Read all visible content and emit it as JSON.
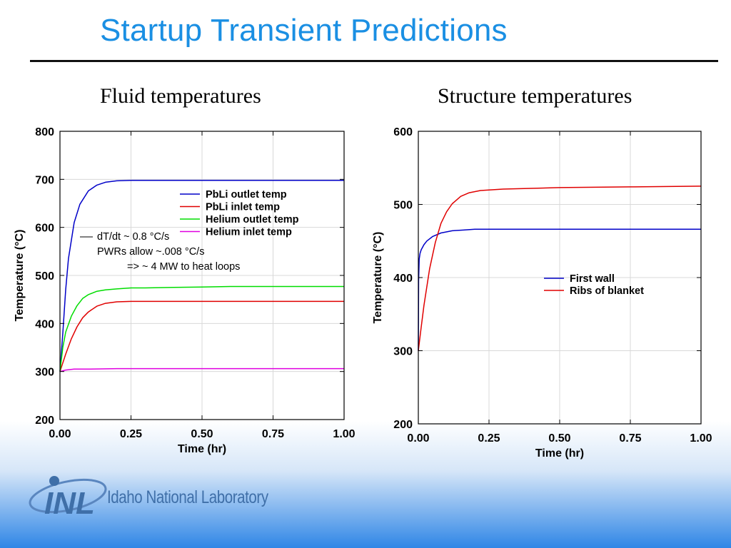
{
  "slide": {
    "title": "Startup Transient Predictions",
    "left_subtitle": "Fluid temperatures",
    "right_subtitle": "Structure temperatures",
    "logo_mark": "INL",
    "logo_text": "Idaho National Laboratory"
  },
  "colors": {
    "title": "#1a8fe3",
    "blue": "#0000c8",
    "red": "#e00000",
    "green": "#00dd00",
    "magenta": "#e000e0"
  },
  "chart_data": [
    {
      "type": "line",
      "title": "Fluid temperatures",
      "xlabel": "Time (hr)",
      "ylabel": "Temperature (°C)",
      "xlim": [
        0,
        1
      ],
      "ylim": [
        200,
        800
      ],
      "xticks": [
        "0.00",
        "0.25",
        "0.50",
        "0.75",
        "1.00"
      ],
      "yticks": [
        "200",
        "300",
        "400",
        "500",
        "600",
        "700",
        "800"
      ],
      "grid": true,
      "legend_position": "top-right",
      "series": [
        {
          "name": "PbLi outlet temp",
          "color": "#0000c8",
          "x": [
            0,
            0.01,
            0.02,
            0.03,
            0.05,
            0.07,
            0.1,
            0.13,
            0.16,
            0.2,
            0.25,
            0.3,
            0.4,
            0.5,
            0.6,
            0.75,
            1.0
          ],
          "y": [
            300,
            380,
            470,
            535,
            610,
            648,
            676,
            688,
            694,
            697,
            698,
            698,
            698,
            698,
            698,
            698,
            698
          ]
        },
        {
          "name": "PbLi inlet temp",
          "color": "#e00000",
          "x": [
            0,
            0.02,
            0.04,
            0.06,
            0.08,
            0.1,
            0.13,
            0.16,
            0.2,
            0.25,
            0.3,
            0.4,
            0.5,
            0.6,
            0.75,
            1.0
          ],
          "y": [
            300,
            336,
            368,
            393,
            412,
            424,
            436,
            442,
            445,
            446,
            446,
            446,
            446,
            446,
            446,
            446
          ]
        },
        {
          "name": "Helium outlet temp",
          "color": "#00dd00",
          "x": [
            0,
            0.01,
            0.02,
            0.04,
            0.06,
            0.08,
            0.1,
            0.13,
            0.16,
            0.2,
            0.25,
            0.3,
            0.4,
            0.5,
            0.6,
            0.75,
            1.0
          ],
          "y": [
            300,
            350,
            382,
            415,
            437,
            452,
            460,
            467,
            470,
            472,
            474,
            474,
            475,
            476,
            477,
            477,
            477
          ]
        },
        {
          "name": "Helium inlet temp",
          "color": "#e000e0",
          "x": [
            0,
            0.02,
            0.05,
            0.1,
            0.2,
            0.3,
            0.5,
            0.75,
            1.0
          ],
          "y": [
            300,
            303,
            305,
            305,
            306,
            306,
            306,
            306,
            306
          ]
        }
      ],
      "annotations": [
        "dT/dt ~ 0.8 °C/s",
        "PWRs allow ~.008 °C/s",
        "=> ~ 4 MW to heat loops"
      ]
    },
    {
      "type": "line",
      "title": "Structure temperatures",
      "xlabel": "Time (hr)",
      "ylabel": "Temperature (°C)",
      "xlim": [
        0,
        1
      ],
      "ylim": [
        200,
        600
      ],
      "xticks": [
        "0.00",
        "0.25",
        "0.50",
        "0.75",
        "1.00"
      ],
      "yticks": [
        "200",
        "300",
        "400",
        "500",
        "600"
      ],
      "grid": true,
      "legend_position": "center-right",
      "series": [
        {
          "name": "First wall",
          "color": "#0000c8",
          "x": [
            0,
            0.001,
            0.003,
            0.006,
            0.01,
            0.02,
            0.03,
            0.05,
            0.08,
            0.12,
            0.16,
            0.2,
            0.3,
            0.5,
            0.75,
            1.0
          ],
          "y": [
            300,
            395,
            425,
            433,
            438,
            445,
            450,
            456,
            461,
            464,
            465,
            466,
            466,
            466,
            466,
            466
          ]
        },
        {
          "name": "Ribs of blanket",
          "color": "#e00000",
          "x": [
            0,
            0.01,
            0.02,
            0.04,
            0.06,
            0.08,
            0.1,
            0.12,
            0.15,
            0.18,
            0.22,
            0.3,
            0.5,
            0.75,
            1.0
          ],
          "y": [
            300,
            332,
            362,
            412,
            448,
            474,
            490,
            501,
            511,
            516,
            519,
            521,
            523,
            524,
            525
          ]
        }
      ]
    }
  ]
}
